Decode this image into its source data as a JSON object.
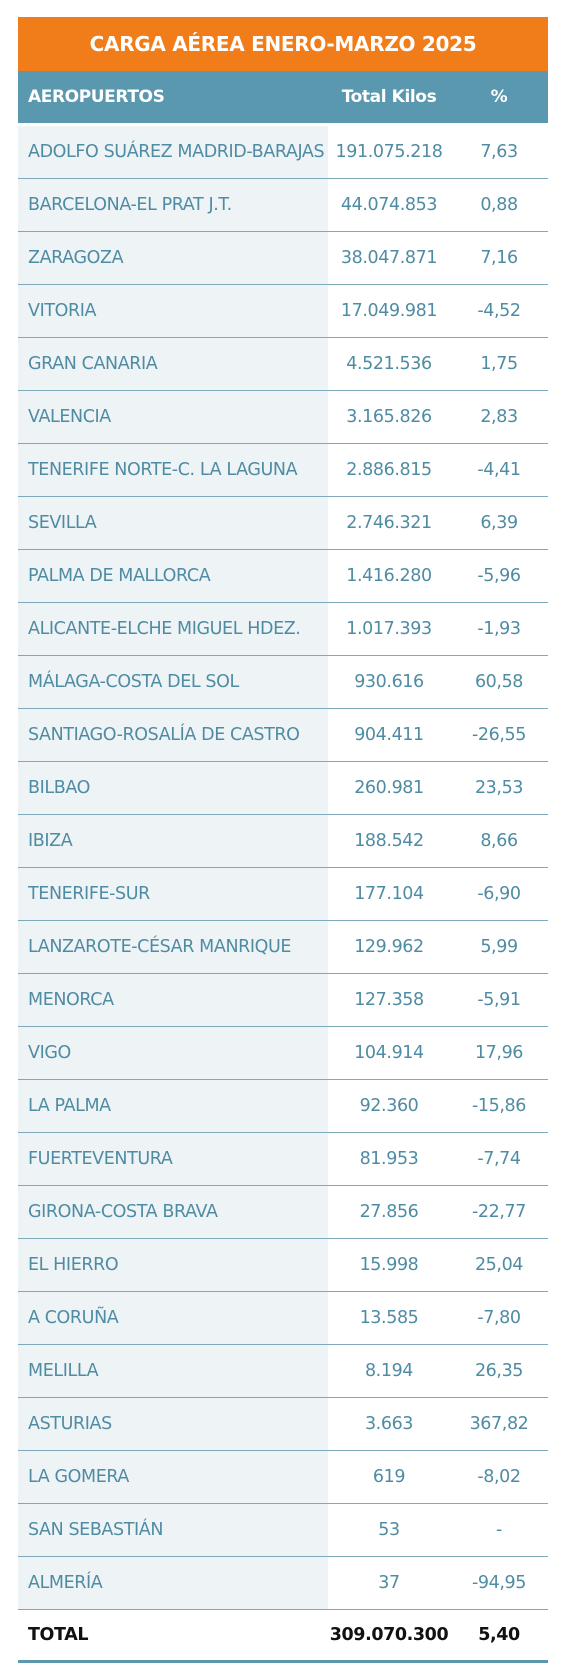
{
  "chart_data": {
    "type": "table",
    "title": "CARGA AÉREA ENERO-MARZO 2025",
    "columns": [
      "AEROPUERTOS",
      "Total Kilos",
      "%"
    ],
    "rows": [
      {
        "name": "ADOLFO SUÁREZ MADRID-BARAJAS",
        "kilos": "191.075.218",
        "pct": "7,63"
      },
      {
        "name": "BARCELONA-EL PRAT J.T.",
        "kilos": "44.074.853",
        "pct": "0,88"
      },
      {
        "name": "ZARAGOZA",
        "kilos": "38.047.871",
        "pct": "7,16"
      },
      {
        "name": "VITORIA",
        "kilos": "17.049.981",
        "pct": "-4,52"
      },
      {
        "name": "GRAN CANARIA",
        "kilos": "4.521.536",
        "pct": "1,75"
      },
      {
        "name": "VALENCIA",
        "kilos": "3.165.826",
        "pct": "2,83"
      },
      {
        "name": "TENERIFE NORTE-C. LA LAGUNA",
        "kilos": "2.886.815",
        "pct": "-4,41"
      },
      {
        "name": "SEVILLA",
        "kilos": "2.746.321",
        "pct": "6,39"
      },
      {
        "name": "PALMA DE MALLORCA",
        "kilos": "1.416.280",
        "pct": "-5,96"
      },
      {
        "name": "ALICANTE-ELCHE MIGUEL HDEZ.",
        "kilos": "1.017.393",
        "pct": "-1,93"
      },
      {
        "name": "MÁLAGA-COSTA DEL SOL",
        "kilos": "930.616",
        "pct": "60,58"
      },
      {
        "name": "SANTIAGO-ROSALÍA DE CASTRO",
        "kilos": "904.411",
        "pct": "-26,55"
      },
      {
        "name": "BILBAO",
        "kilos": "260.981",
        "pct": "23,53"
      },
      {
        "name": "IBIZA",
        "kilos": "188.542",
        "pct": "8,66"
      },
      {
        "name": "TENERIFE-SUR",
        "kilos": "177.104",
        "pct": "-6,90"
      },
      {
        "name": "LANZAROTE-CÉSAR MANRIQUE",
        "kilos": "129.962",
        "pct": "5,99"
      },
      {
        "name": "MENORCA",
        "kilos": "127.358",
        "pct": "-5,91"
      },
      {
        "name": "VIGO",
        "kilos": "104.914",
        "pct": "17,96"
      },
      {
        "name": "LA PALMA",
        "kilos": "92.360",
        "pct": "-15,86"
      },
      {
        "name": "FUERTEVENTURA",
        "kilos": "81.953",
        "pct": "-7,74"
      },
      {
        "name": "GIRONA-COSTA BRAVA",
        "kilos": "27.856",
        "pct": "-22,77"
      },
      {
        "name": "EL HIERRO",
        "kilos": "15.998",
        "pct": "25,04"
      },
      {
        "name": "A CORUÑA",
        "kilos": "13.585",
        "pct": "-7,80"
      },
      {
        "name": "MELILLA",
        "kilos": "8.194",
        "pct": "26,35"
      },
      {
        "name": "ASTURIAS",
        "kilos": "3.663",
        "pct": "367,82"
      },
      {
        "name": "LA GOMERA",
        "kilos": "619",
        "pct": "-8,02"
      },
      {
        "name": "SAN SEBASTIÁN",
        "kilos": "53",
        "pct": "-"
      },
      {
        "name": "ALMERÍA",
        "kilos": "37",
        "pct": "-94,95"
      }
    ],
    "total": {
      "name": "TOTAL",
      "kilos": "309.070.300",
      "pct": "5,40"
    }
  },
  "colors": {
    "title_bg": "#f07d1a",
    "header_bg": "#5a98b0",
    "row_text": "#4f8ca3",
    "name_cell_bg": "#eef3f6",
    "row_border": "#7fa9bb"
  }
}
